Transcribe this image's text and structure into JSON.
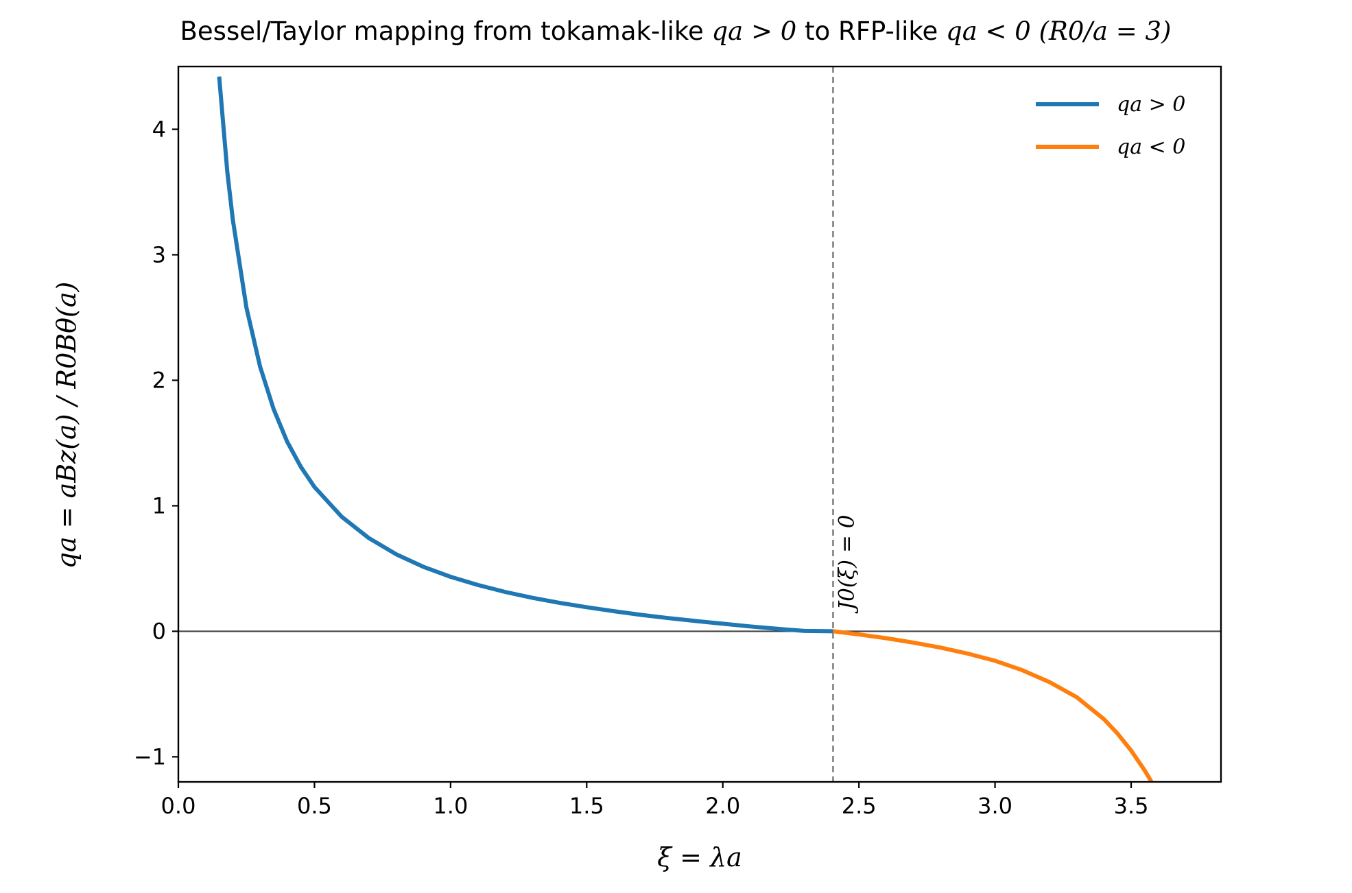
{
  "chart_data": {
    "type": "line",
    "title_parts": [
      {
        "text": "Bessel/Taylor mapping from tokamak-like ",
        "math": false
      },
      {
        "text": "qa > 0",
        "math": true
      },
      {
        "text": " to RFP-like ",
        "math": false
      },
      {
        "text": "qa < 0",
        "math": true
      },
      {
        "text": " (R0/a = 3)",
        "math": true
      }
    ],
    "xlabel": "ξ = λa",
    "ylabel": "qa = aBz(a) / R0Bθ(a)",
    "xlim": [
      0,
      3.83
    ],
    "ylim": [
      -1.2,
      4.5
    ],
    "x_ticks": [
      {
        "value": 0.0,
        "label": "0.0"
      },
      {
        "value": 0.5,
        "label": "0.5"
      },
      {
        "value": 1.0,
        "label": "1.0"
      },
      {
        "value": 1.5,
        "label": "1.5"
      },
      {
        "value": 2.0,
        "label": "2.0"
      },
      {
        "value": 2.5,
        "label": "2.5"
      },
      {
        "value": 3.0,
        "label": "3.0"
      },
      {
        "value": 3.5,
        "label": "3.5"
      }
    ],
    "y_ticks": [
      {
        "value": -1,
        "label": "−1"
      },
      {
        "value": 0,
        "label": "0"
      },
      {
        "value": 1,
        "label": "1"
      },
      {
        "value": 2,
        "label": "2"
      },
      {
        "value": 3,
        "label": "3"
      },
      {
        "value": 4,
        "label": "4"
      }
    ],
    "grid": false,
    "legend_position": "top-right",
    "series": [
      {
        "name": "qa > 0",
        "color": "#1f77b4",
        "x": [
          0.15,
          0.18,
          0.2,
          0.25,
          0.3,
          0.35,
          0.4,
          0.45,
          0.5,
          0.6,
          0.7,
          0.8,
          0.9,
          1.0,
          1.1,
          1.2,
          1.3,
          1.4,
          1.5,
          1.6,
          1.7,
          1.8,
          1.9,
          2.0,
          2.1,
          2.2,
          2.3,
          2.405
        ],
        "y": [
          4.42,
          3.66,
          3.28,
          2.58,
          2.11,
          1.77,
          1.51,
          1.31,
          1.15,
          0.913,
          0.742,
          0.614,
          0.514,
          0.434,
          0.369,
          0.314,
          0.267,
          0.227,
          0.192,
          0.16,
          0.131,
          0.105,
          0.082,
          0.06,
          0.039,
          0.02,
          0.003,
          0.0
        ]
      },
      {
        "name": "qa < 0",
        "color": "#ff7f0e",
        "x": [
          2.405,
          2.5,
          2.6,
          2.7,
          2.8,
          2.9,
          3.0,
          3.1,
          3.2,
          3.3,
          3.4,
          3.45,
          3.5,
          3.55,
          3.575
        ],
        "y": [
          0.0,
          -0.025,
          -0.055,
          -0.09,
          -0.13,
          -0.178,
          -0.235,
          -0.31,
          -0.405,
          -0.525,
          -0.7,
          -0.815,
          -0.95,
          -1.11,
          -1.2
        ]
      }
    ],
    "vline": {
      "x": 2.405,
      "color": "#808080",
      "style": "dashed"
    },
    "hline": {
      "y": 0,
      "color": "#404040"
    },
    "annotation": {
      "text": "J0(ξ) = 0",
      "x": 2.45,
      "y": 0.17
    }
  }
}
